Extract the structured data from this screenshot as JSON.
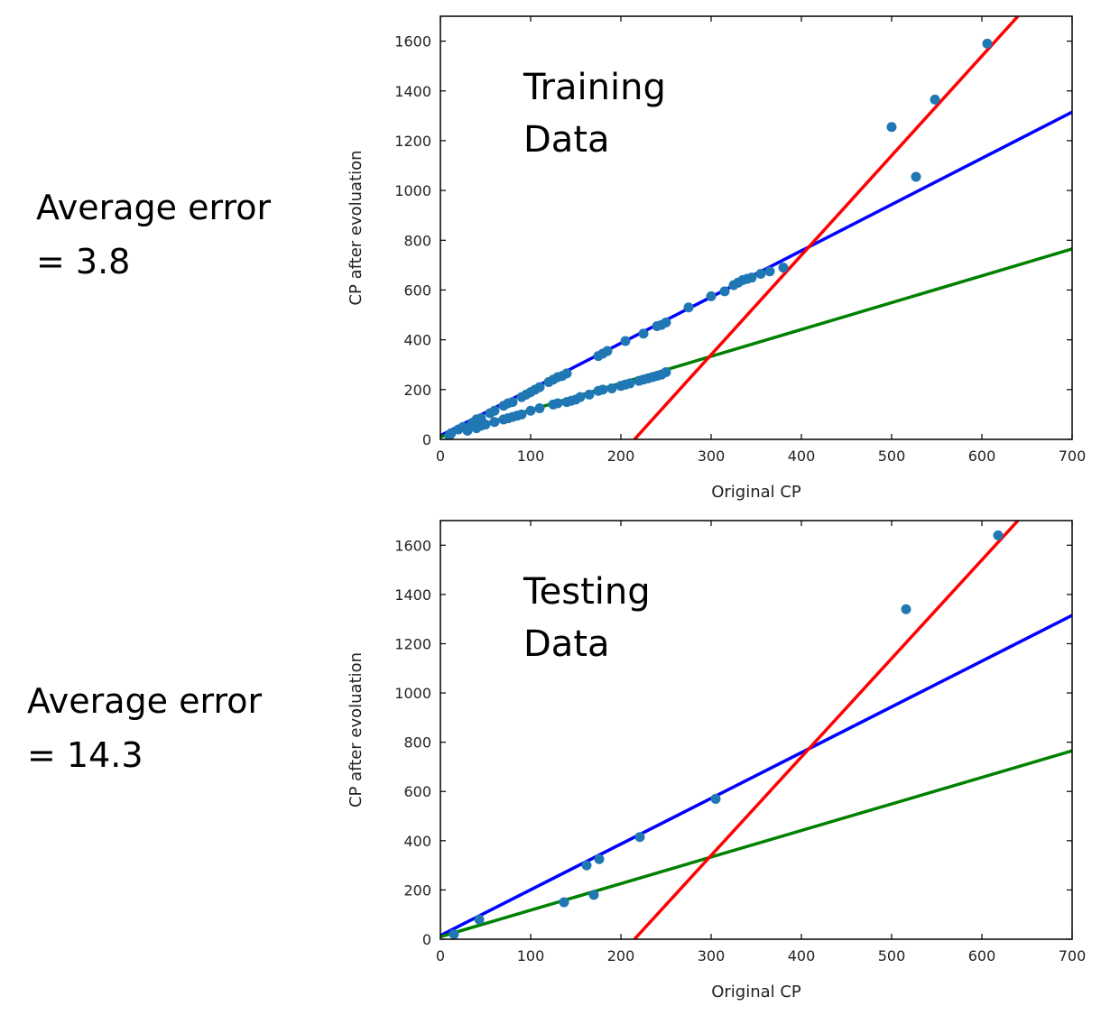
{
  "errors": {
    "training_line1": "Average error",
    "training_line2": "= 3.8",
    "testing_line1": "Average error",
    "testing_line2": "= 14.3"
  },
  "colors": {
    "points": "#1f77b4",
    "blue_line": "#0000ff",
    "red_line": "#ff0000",
    "green_line": "#008000"
  },
  "chart_data": [
    {
      "type": "scatter",
      "annotation": [
        "Training",
        "Data"
      ],
      "xlabel": "Original CP",
      "ylabel": "CP after evoluation",
      "xlim": [
        0,
        700
      ],
      "ylim": [
        0,
        1700
      ],
      "xticks": [
        0,
        100,
        200,
        300,
        400,
        500,
        600,
        700
      ],
      "yticks": [
        0,
        200,
        400,
        600,
        800,
        1000,
        1200,
        1400,
        1600
      ],
      "points": [
        [
          12,
          25
        ],
        [
          20,
          40
        ],
        [
          25,
          50
        ],
        [
          35,
          65
        ],
        [
          40,
          80
        ],
        [
          45,
          85
        ],
        [
          55,
          105
        ],
        [
          60,
          115
        ],
        [
          70,
          135
        ],
        [
          75,
          145
        ],
        [
          80,
          150
        ],
        [
          90,
          170
        ],
        [
          95,
          180
        ],
        [
          100,
          190
        ],
        [
          105,
          200
        ],
        [
          110,
          210
        ],
        [
          120,
          230
        ],
        [
          125,
          240
        ],
        [
          130,
          250
        ],
        [
          135,
          255
        ],
        [
          140,
          265
        ],
        [
          175,
          335
        ],
        [
          180,
          345
        ],
        [
          185,
          355
        ],
        [
          205,
          395
        ],
        [
          225,
          425
        ],
        [
          240,
          455
        ],
        [
          245,
          460
        ],
        [
          250,
          470
        ],
        [
          275,
          530
        ],
        [
          300,
          575
        ],
        [
          315,
          595
        ],
        [
          325,
          620
        ],
        [
          330,
          630
        ],
        [
          335,
          640
        ],
        [
          340,
          645
        ],
        [
          345,
          650
        ],
        [
          355,
          665
        ],
        [
          365,
          675
        ],
        [
          380,
          690
        ],
        [
          10,
          15
        ],
        [
          30,
          35
        ],
        [
          40,
          45
        ],
        [
          45,
          55
        ],
        [
          50,
          60
        ],
        [
          60,
          70
        ],
        [
          70,
          80
        ],
        [
          75,
          85
        ],
        [
          80,
          90
        ],
        [
          85,
          95
        ],
        [
          90,
          100
        ],
        [
          100,
          115
        ],
        [
          110,
          125
        ],
        [
          125,
          140
        ],
        [
          130,
          145
        ],
        [
          140,
          150
        ],
        [
          145,
          155
        ],
        [
          150,
          160
        ],
        [
          155,
          170
        ],
        [
          165,
          180
        ],
        [
          175,
          195
        ],
        [
          180,
          200
        ],
        [
          190,
          205
        ],
        [
          200,
          215
        ],
        [
          205,
          220
        ],
        [
          210,
          225
        ],
        [
          220,
          235
        ],
        [
          225,
          240
        ],
        [
          230,
          245
        ],
        [
          235,
          250
        ],
        [
          240,
          255
        ],
        [
          245,
          260
        ],
        [
          250,
          270
        ],
        [
          500,
          1255
        ],
        [
          527,
          1055
        ],
        [
          548,
          1365
        ],
        [
          606,
          1590
        ]
      ],
      "lines": [
        {
          "color": "blue",
          "x": [
            0,
            700
          ],
          "y": [
            15,
            1315
          ]
        },
        {
          "color": "green",
          "x": [
            0,
            700
          ],
          "y": [
            10,
            765
          ]
        },
        {
          "color": "red",
          "x": [
            215,
            640
          ],
          "y": [
            0,
            1700
          ]
        }
      ]
    },
    {
      "type": "scatter",
      "annotation": [
        "Testing",
        "Data"
      ],
      "xlabel": "Original CP",
      "ylabel": "CP after evoluation",
      "xlim": [
        0,
        700
      ],
      "ylim": [
        0,
        1700
      ],
      "xticks": [
        0,
        100,
        200,
        300,
        400,
        500,
        600,
        700
      ],
      "yticks": [
        0,
        200,
        400,
        600,
        800,
        1000,
        1200,
        1400,
        1600
      ],
      "points": [
        [
          15,
          20
        ],
        [
          43,
          80
        ],
        [
          137,
          150
        ],
        [
          162,
          300
        ],
        [
          170,
          180
        ],
        [
          176,
          325
        ],
        [
          221,
          415
        ],
        [
          305,
          570
        ],
        [
          516,
          1340
        ],
        [
          618,
          1640
        ]
      ],
      "lines": [
        {
          "color": "blue",
          "x": [
            0,
            700
          ],
          "y": [
            15,
            1315
          ]
        },
        {
          "color": "green",
          "x": [
            0,
            700
          ],
          "y": [
            10,
            765
          ]
        },
        {
          "color": "red",
          "x": [
            215,
            640
          ],
          "y": [
            0,
            1700
          ]
        }
      ]
    }
  ]
}
